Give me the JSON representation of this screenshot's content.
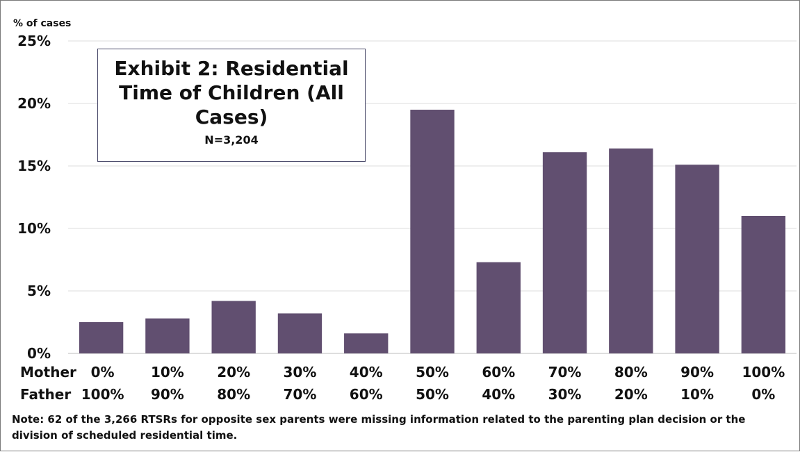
{
  "chart_data": {
    "type": "bar",
    "title": "Exhibit 2: Residential Time of Children (All Cases)",
    "subtitle": "N=3,204",
    "ylabel": "% of cases",
    "ylim": [
      0,
      25
    ],
    "yticks": [
      "0%",
      "5%",
      "10%",
      "15%",
      "20%",
      "25%"
    ],
    "grid": true,
    "bar_color": "#614f70",
    "category_rows": [
      {
        "label": "Mother",
        "values": [
          "0%",
          "10%",
          "20%",
          "30%",
          "40%",
          "50%",
          "60%",
          "70%",
          "80%",
          "90%",
          "100%"
        ]
      },
      {
        "label": "Father",
        "values": [
          "100%",
          "90%",
          "80%",
          "70%",
          "60%",
          "50%",
          "40%",
          "30%",
          "20%",
          "10%",
          "0%"
        ]
      }
    ],
    "values": [
      2.5,
      2.8,
      4.2,
      3.2,
      1.6,
      19.5,
      7.3,
      16.1,
      16.4,
      15.1,
      11.0
    ]
  },
  "note": "Note: 62 of the 3,266 RTSRs for opposite sex parents were missing information related to the parenting plan decision or the division of scheduled residential time."
}
